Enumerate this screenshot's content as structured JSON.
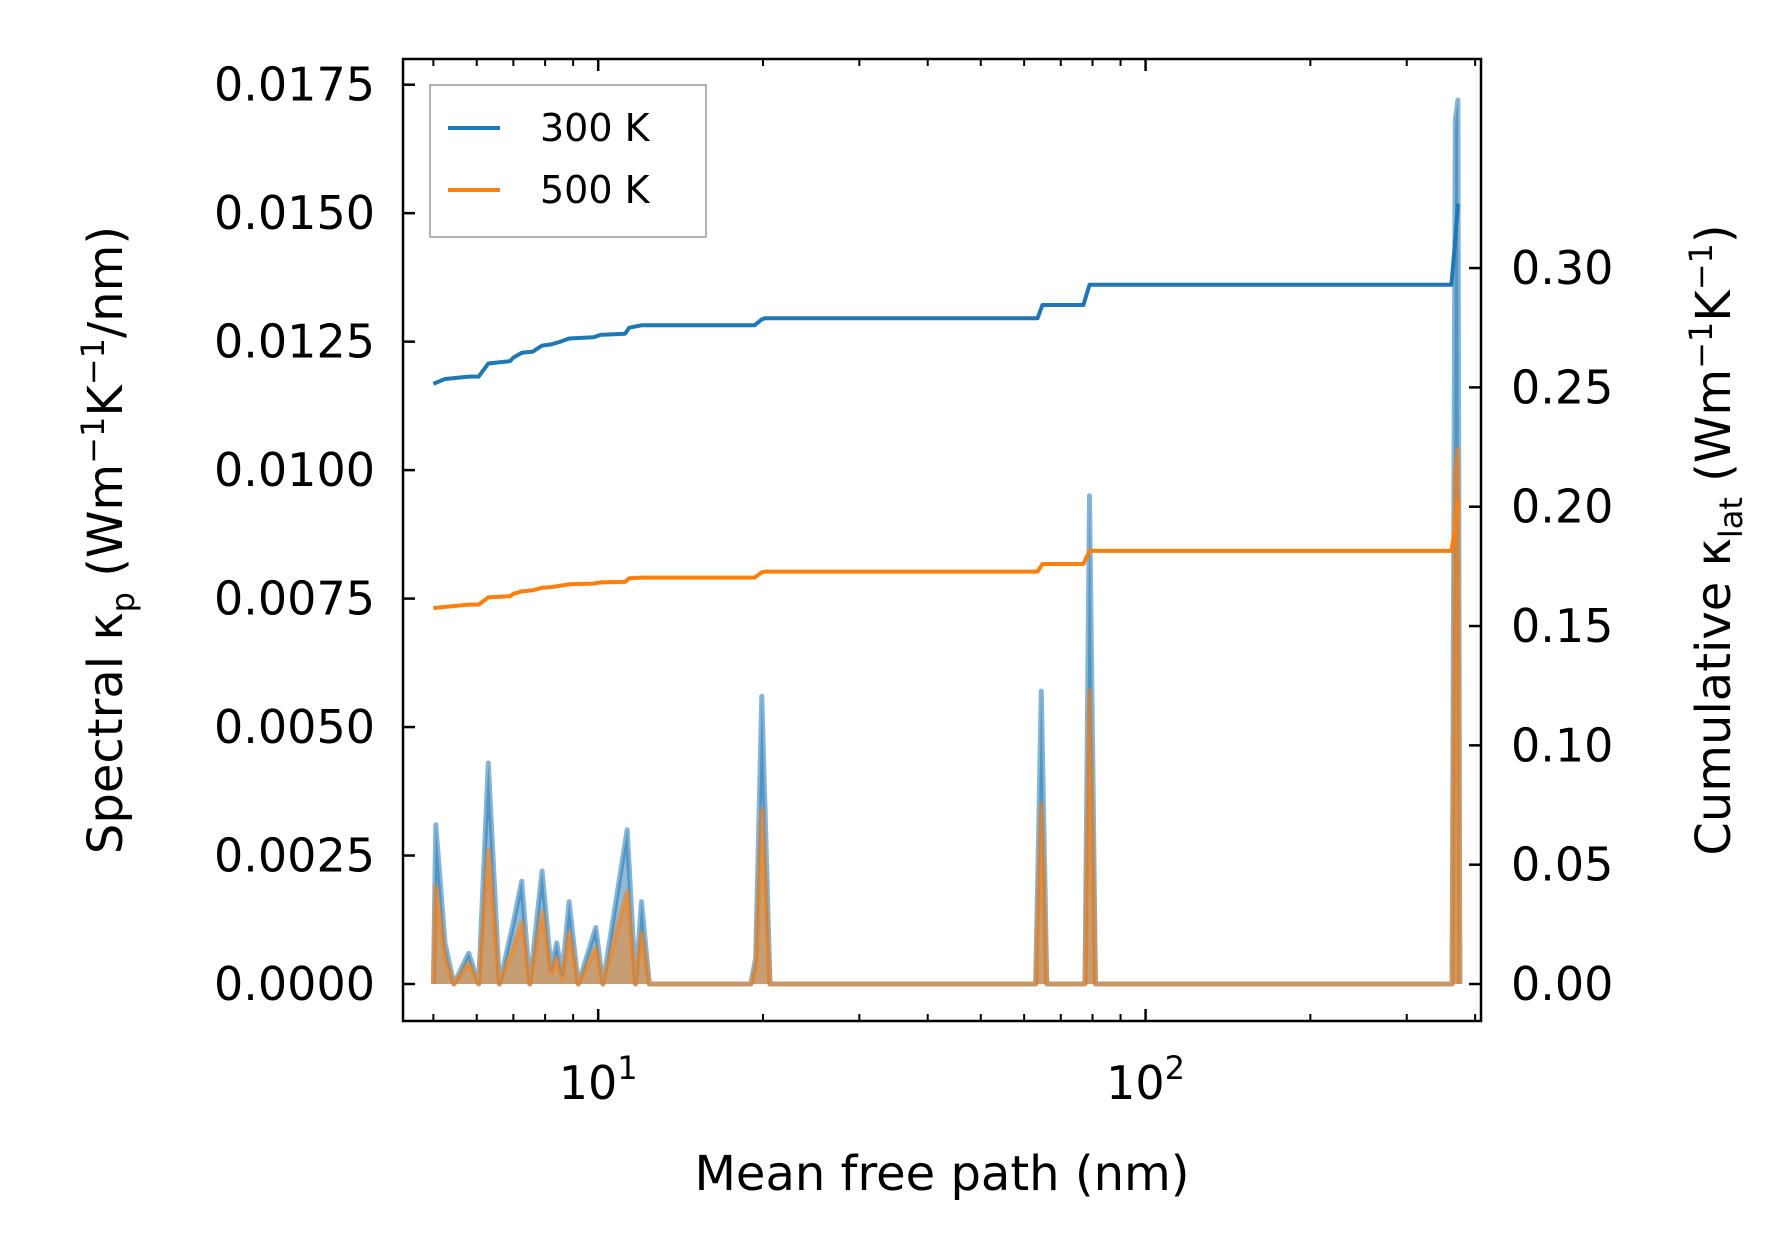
{
  "chart_data": {
    "type": "line",
    "xlabel": "Mean free path (nm)",
    "xscale": "log",
    "xlim": [
      4.4,
      410
    ],
    "x_ticks": [
      {
        "value": 10,
        "base": "10",
        "exp": "1"
      },
      {
        "value": 100,
        "base": "10",
        "exp": "2"
      }
    ],
    "ylabel_left": {
      "prefix": "Spectral κ",
      "sub": "p",
      "unit": " (Wm",
      "sup1": "−1",
      "mid": "K",
      "sup2": "−1",
      "end": "/nm)"
    },
    "ylim_left": [
      -0.00072,
      0.018
    ],
    "y_ticks_left": [
      {
        "value": 0.0,
        "label": "0.0000"
      },
      {
        "value": 0.0025,
        "label": "0.0025"
      },
      {
        "value": 0.005,
        "label": "0.0050"
      },
      {
        "value": 0.0075,
        "label": "0.0075"
      },
      {
        "value": 0.01,
        "label": "0.0100"
      },
      {
        "value": 0.0125,
        "label": "0.0125"
      },
      {
        "value": 0.015,
        "label": "0.0150"
      },
      {
        "value": 0.0175,
        "label": "0.0175"
      }
    ],
    "ylabel_right": {
      "prefix": "Cumulative κ",
      "sub": "lat",
      "unit": " (Wm",
      "sup1": "−1",
      "mid": "K",
      "sup2": "−1",
      "end": ")"
    },
    "ylim_right": [
      -0.0155,
      0.3876
    ],
    "y_ticks_right": [
      {
        "value": 0.0,
        "label": "0.00"
      },
      {
        "value": 0.05,
        "label": "0.05"
      },
      {
        "value": 0.1,
        "label": "0.10"
      },
      {
        "value": 0.15,
        "label": "0.15"
      },
      {
        "value": 0.2,
        "label": "0.20"
      },
      {
        "value": 0.25,
        "label": "0.25"
      },
      {
        "value": 0.3,
        "label": "0.30"
      }
    ],
    "legend": {
      "position": "top-left",
      "entries": [
        {
          "label": "300 K",
          "color": "#1f77b4"
        },
        {
          "label": "500 K",
          "color": "#ff7f0e"
        }
      ]
    },
    "spectral_series": [
      {
        "name": "300 K",
        "color": "#1f77b4",
        "axis": "left",
        "points": [
          [
            5.0,
            0
          ],
          [
            5.05,
            0.0031
          ],
          [
            5.25,
            0.0008
          ],
          [
            5.45,
            0
          ],
          [
            5.8,
            0.0006
          ],
          [
            6.05,
            0
          ],
          [
            6.3,
            0.0043
          ],
          [
            6.6,
            0
          ],
          [
            7.0,
            0.0012
          ],
          [
            7.25,
            0.002
          ],
          [
            7.5,
            0
          ],
          [
            7.9,
            0.0022
          ],
          [
            8.2,
            0.0003
          ],
          [
            8.4,
            0.0008
          ],
          [
            8.6,
            0.0002
          ],
          [
            8.85,
            0.0016
          ],
          [
            9.2,
            0
          ],
          [
            9.9,
            0.0011
          ],
          [
            10.2,
            0
          ],
          [
            11.3,
            0.003
          ],
          [
            11.7,
            0
          ],
          [
            12.0,
            0.0016
          ],
          [
            12.4,
            0
          ],
          [
            19.0,
            0
          ],
          [
            19.4,
            0.0005
          ],
          [
            19.9,
            0.0056
          ],
          [
            20.6,
            0
          ],
          [
            63.0,
            0
          ],
          [
            64.5,
            0.0057
          ],
          [
            66.0,
            0
          ],
          [
            77.5,
            0
          ],
          [
            79.0,
            0.0095
          ],
          [
            81.0,
            0
          ],
          [
            363,
            0
          ],
          [
            368,
            0.0168
          ],
          [
            372,
            0.0172
          ],
          [
            375,
            0
          ]
        ]
      },
      {
        "name": "500 K",
        "color": "#ff7f0e",
        "axis": "left",
        "points": [
          [
            5.0,
            0
          ],
          [
            5.05,
            0.0019
          ],
          [
            5.25,
            0.0005
          ],
          [
            5.45,
            0
          ],
          [
            5.8,
            0.0004
          ],
          [
            6.05,
            0
          ],
          [
            6.3,
            0.0026
          ],
          [
            6.6,
            0
          ],
          [
            7.0,
            0.0007
          ],
          [
            7.25,
            0.0012
          ],
          [
            7.5,
            0
          ],
          [
            7.9,
            0.0014
          ],
          [
            8.2,
            0.0002
          ],
          [
            8.4,
            0.0005
          ],
          [
            8.6,
            0.0001
          ],
          [
            8.85,
            0.001
          ],
          [
            9.2,
            0
          ],
          [
            9.9,
            0.0007
          ],
          [
            10.2,
            0
          ],
          [
            11.3,
            0.0018
          ],
          [
            11.7,
            0
          ],
          [
            12.0,
            0.001
          ],
          [
            12.4,
            0
          ],
          [
            19.0,
            0
          ],
          [
            19.4,
            0.0003
          ],
          [
            19.9,
            0.0034
          ],
          [
            20.6,
            0
          ],
          [
            63.0,
            0
          ],
          [
            64.5,
            0.0035
          ],
          [
            66.0,
            0
          ],
          [
            77.5,
            0
          ],
          [
            79.0,
            0.0057
          ],
          [
            81.0,
            0
          ],
          [
            363,
            0
          ],
          [
            368,
            0.01
          ],
          [
            372,
            0.0104
          ],
          [
            375,
            0
          ]
        ]
      }
    ],
    "cumulative_series": [
      {
        "name": "300 K",
        "color": "#1f77b4",
        "axis": "right",
        "points": [
          [
            5.0,
            0.2515
          ],
          [
            5.25,
            0.2535
          ],
          [
            5.8,
            0.2545
          ],
          [
            6.05,
            0.2545
          ],
          [
            6.3,
            0.26
          ],
          [
            6.9,
            0.261
          ],
          [
            7.0,
            0.2625
          ],
          [
            7.25,
            0.2645
          ],
          [
            7.6,
            0.265
          ],
          [
            7.9,
            0.2675
          ],
          [
            8.2,
            0.268
          ],
          [
            8.5,
            0.269
          ],
          [
            8.85,
            0.2705
          ],
          [
            9.8,
            0.271
          ],
          [
            10.1,
            0.272
          ],
          [
            11.2,
            0.2725
          ],
          [
            11.4,
            0.275
          ],
          [
            12.0,
            0.276
          ],
          [
            19.3,
            0.276
          ],
          [
            19.9,
            0.2785
          ],
          [
            20.2,
            0.279
          ],
          [
            63.5,
            0.279
          ],
          [
            64.8,
            0.2845
          ],
          [
            77.0,
            0.2845
          ],
          [
            79.0,
            0.293
          ],
          [
            362,
            0.293
          ],
          [
            368,
            0.312
          ],
          [
            372,
            0.327
          ]
        ]
      },
      {
        "name": "500 K",
        "color": "#ff7f0e",
        "axis": "right",
        "points": [
          [
            5.0,
            0.1575
          ],
          [
            5.25,
            0.158
          ],
          [
            5.8,
            0.159
          ],
          [
            6.05,
            0.159
          ],
          [
            6.3,
            0.162
          ],
          [
            6.9,
            0.1625
          ],
          [
            7.0,
            0.1635
          ],
          [
            7.25,
            0.1645
          ],
          [
            7.6,
            0.165
          ],
          [
            7.9,
            0.166
          ],
          [
            8.2,
            0.1663
          ],
          [
            8.5,
            0.1668
          ],
          [
            8.85,
            0.1675
          ],
          [
            9.8,
            0.1678
          ],
          [
            10.1,
            0.1683
          ],
          [
            11.2,
            0.1685
          ],
          [
            11.4,
            0.17
          ],
          [
            12.0,
            0.1703
          ],
          [
            19.3,
            0.1703
          ],
          [
            19.9,
            0.1725
          ],
          [
            20.2,
            0.1728
          ],
          [
            63.5,
            0.1728
          ],
          [
            64.8,
            0.176
          ],
          [
            77.0,
            0.176
          ],
          [
            79.0,
            0.1815
          ],
          [
            362,
            0.1815
          ],
          [
            368,
            0.191
          ],
          [
            372,
            0.203
          ]
        ]
      }
    ]
  }
}
